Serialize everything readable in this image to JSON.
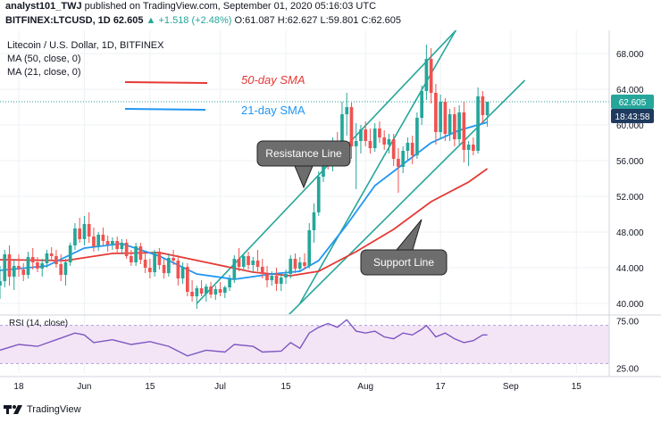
{
  "header": {
    "author": "analyst101_TWJ",
    "published": "published on TradingView.com, September 01, 2020 05:16:03 UTC",
    "symbol": "BITFINEX:LTCUSD, 1D",
    "last": "62.605",
    "change": "▲ +1.518 (+2.48%)",
    "ohlc": "O:61.087 H:62.627 L:59.801 C:62.605"
  },
  "legend": {
    "title": "Litecoin / U.S. Dollar, 1D, BITFINEX",
    "ma50": "MA (50, close, 0)",
    "ma21": "MA (21, close, 0)"
  },
  "annotations": {
    "sma50": "50-day SMA",
    "sma21": "21-day SMA",
    "resistance": "Resistance Line",
    "support": "Support Line"
  },
  "price_badges": {
    "price": "62.605",
    "countdown": "18:43:58"
  },
  "rsi": {
    "label": "RSI (14, close)",
    "ticks": [
      "75.00",
      "25.00"
    ]
  },
  "footer": {
    "brand": "TradingView"
  },
  "colors": {
    "up": "#26a69a",
    "down": "#ef5350",
    "ma50": "#e53935",
    "ma21": "#2196f3",
    "channel": "#26a69a",
    "rsi": "#7e57c2",
    "badge_price": "#26a69a",
    "badge_time": "#1e3a5f"
  },
  "chart_data": {
    "type": "candlestick",
    "title": "Litecoin / U.S. Dollar, 1D, BITFINEX",
    "y_ticks": [
      40,
      44,
      48,
      52,
      56,
      60,
      64,
      68
    ],
    "y_tick_labels": [
      "40.000",
      "44.000",
      "48.000",
      "52.000",
      "56.000",
      "60.000",
      "64.000",
      "68.000"
    ],
    "ylim": [
      38.8,
      70.6
    ],
    "x_tick_labels": [
      "18",
      "Jun",
      "15",
      "Jul",
      "15",
      "Aug",
      "17",
      "Sep",
      "15"
    ],
    "x_tick_days": [
      0,
      14,
      28,
      43,
      57,
      74,
      90,
      105,
      119
    ],
    "x_days_range": [
      -4,
      126
    ],
    "candles": [
      {
        "d": -4,
        "o": 42.0,
        "h": 44.2,
        "l": 40.5,
        "c": 42.5
      },
      {
        "d": -3,
        "o": 42.5,
        "h": 46.0,
        "l": 41.8,
        "c": 45.5
      },
      {
        "d": -2,
        "o": 45.5,
        "h": 46.5,
        "l": 42.0,
        "c": 43.0
      },
      {
        "d": -1,
        "o": 43.0,
        "h": 45.0,
        "l": 41.5,
        "c": 44.2
      },
      {
        "d": 0,
        "o": 44.2,
        "h": 45.5,
        "l": 43.0,
        "c": 43.8
      },
      {
        "d": 1,
        "o": 43.8,
        "h": 44.5,
        "l": 42.5,
        "c": 43.2
      },
      {
        "d": 2,
        "o": 43.2,
        "h": 45.8,
        "l": 42.8,
        "c": 45.2
      },
      {
        "d": 3,
        "o": 45.2,
        "h": 46.2,
        "l": 43.8,
        "c": 44.6
      },
      {
        "d": 4,
        "o": 44.6,
        "h": 45.2,
        "l": 43.5,
        "c": 43.9
      },
      {
        "d": 5,
        "o": 43.9,
        "h": 45.0,
        "l": 43.0,
        "c": 44.5
      },
      {
        "d": 6,
        "o": 44.5,
        "h": 46.0,
        "l": 44.0,
        "c": 45.6
      },
      {
        "d": 7,
        "o": 45.6,
        "h": 46.3,
        "l": 44.8,
        "c": 45.3
      },
      {
        "d": 8,
        "o": 45.3,
        "h": 46.0,
        "l": 44.0,
        "c": 44.4
      },
      {
        "d": 9,
        "o": 44.4,
        "h": 45.5,
        "l": 42.5,
        "c": 43.2
      },
      {
        "d": 10,
        "o": 43.2,
        "h": 45.0,
        "l": 42.0,
        "c": 44.6
      },
      {
        "d": 11,
        "o": 44.6,
        "h": 46.8,
        "l": 44.2,
        "c": 46.5
      },
      {
        "d": 12,
        "o": 46.5,
        "h": 49.0,
        "l": 46.0,
        "c": 48.4
      },
      {
        "d": 13,
        "o": 48.4,
        "h": 49.6,
        "l": 46.8,
        "c": 47.2
      },
      {
        "d": 14,
        "o": 47.2,
        "h": 49.8,
        "l": 46.5,
        "c": 48.9
      },
      {
        "d": 15,
        "o": 48.9,
        "h": 50.2,
        "l": 46.8,
        "c": 47.5
      },
      {
        "d": 16,
        "o": 47.5,
        "h": 48.5,
        "l": 45.8,
        "c": 46.4
      },
      {
        "d": 17,
        "o": 46.4,
        "h": 48.0,
        "l": 45.9,
        "c": 47.7
      },
      {
        "d": 18,
        "o": 47.7,
        "h": 48.5,
        "l": 46.5,
        "c": 47.0
      },
      {
        "d": 19,
        "o": 47.0,
        "h": 47.6,
        "l": 45.8,
        "c": 46.6
      },
      {
        "d": 20,
        "o": 46.6,
        "h": 47.4,
        "l": 46.0,
        "c": 47.0
      },
      {
        "d": 21,
        "o": 47.0,
        "h": 47.5,
        "l": 45.6,
        "c": 46.1
      },
      {
        "d": 22,
        "o": 46.1,
        "h": 47.2,
        "l": 45.5,
        "c": 46.8
      },
      {
        "d": 23,
        "o": 46.8,
        "h": 47.2,
        "l": 45.0,
        "c": 45.3
      },
      {
        "d": 24,
        "o": 45.3,
        "h": 46.0,
        "l": 44.2,
        "c": 44.6
      },
      {
        "d": 25,
        "o": 44.6,
        "h": 46.8,
        "l": 44.2,
        "c": 46.4
      },
      {
        "d": 26,
        "o": 46.4,
        "h": 46.8,
        "l": 44.4,
        "c": 44.9
      },
      {
        "d": 27,
        "o": 44.9,
        "h": 45.6,
        "l": 43.4,
        "c": 44.0
      },
      {
        "d": 28,
        "o": 44.0,
        "h": 45.0,
        "l": 42.8,
        "c": 43.5
      },
      {
        "d": 29,
        "o": 43.5,
        "h": 46.0,
        "l": 43.0,
        "c": 45.8
      },
      {
        "d": 30,
        "o": 45.8,
        "h": 46.2,
        "l": 43.8,
        "c": 44.3
      },
      {
        "d": 31,
        "o": 44.3,
        "h": 45.0,
        "l": 42.8,
        "c": 43.4
      },
      {
        "d": 32,
        "o": 43.4,
        "h": 45.6,
        "l": 43.0,
        "c": 45.1
      },
      {
        "d": 33,
        "o": 45.1,
        "h": 46.0,
        "l": 44.3,
        "c": 44.8
      },
      {
        "d": 34,
        "o": 44.8,
        "h": 45.4,
        "l": 42.0,
        "c": 42.8
      },
      {
        "d": 35,
        "o": 42.8,
        "h": 44.6,
        "l": 42.2,
        "c": 44.1
      },
      {
        "d": 36,
        "o": 44.1,
        "h": 44.5,
        "l": 40.8,
        "c": 41.3
      },
      {
        "d": 37,
        "o": 41.3,
        "h": 42.6,
        "l": 40.2,
        "c": 40.8
      },
      {
        "d": 38,
        "o": 40.8,
        "h": 42.0,
        "l": 39.4,
        "c": 41.7
      },
      {
        "d": 39,
        "o": 41.7,
        "h": 42.6,
        "l": 40.8,
        "c": 41.1
      },
      {
        "d": 40,
        "o": 41.1,
        "h": 42.2,
        "l": 40.2,
        "c": 41.9
      },
      {
        "d": 41,
        "o": 41.9,
        "h": 42.4,
        "l": 40.6,
        "c": 41.0
      },
      {
        "d": 42,
        "o": 41.0,
        "h": 42.0,
        "l": 40.4,
        "c": 41.6
      },
      {
        "d": 43,
        "o": 41.6,
        "h": 42.4,
        "l": 40.8,
        "c": 41.2
      },
      {
        "d": 44,
        "o": 41.2,
        "h": 42.0,
        "l": 40.6,
        "c": 41.8
      },
      {
        "d": 45,
        "o": 41.8,
        "h": 43.2,
        "l": 41.4,
        "c": 42.7
      },
      {
        "d": 46,
        "o": 42.7,
        "h": 45.4,
        "l": 42.3,
        "c": 45.0
      },
      {
        "d": 47,
        "o": 45.0,
        "h": 46.2,
        "l": 43.6,
        "c": 44.1
      },
      {
        "d": 48,
        "o": 44.1,
        "h": 45.6,
        "l": 43.7,
        "c": 45.3
      },
      {
        "d": 49,
        "o": 45.3,
        "h": 45.8,
        "l": 43.8,
        "c": 44.3
      },
      {
        "d": 50,
        "o": 44.3,
        "h": 45.2,
        "l": 43.4,
        "c": 44.8
      },
      {
        "d": 51,
        "o": 44.8,
        "h": 46.0,
        "l": 43.6,
        "c": 44.1
      },
      {
        "d": 52,
        "o": 44.1,
        "h": 45.0,
        "l": 42.8,
        "c": 43.3
      },
      {
        "d": 53,
        "o": 43.3,
        "h": 44.2,
        "l": 41.8,
        "c": 42.6
      },
      {
        "d": 54,
        "o": 42.6,
        "h": 43.6,
        "l": 42.0,
        "c": 43.1
      },
      {
        "d": 55,
        "o": 43.1,
        "h": 44.0,
        "l": 41.4,
        "c": 42.2
      },
      {
        "d": 56,
        "o": 42.2,
        "h": 43.3,
        "l": 41.4,
        "c": 42.9
      },
      {
        "d": 57,
        "o": 42.9,
        "h": 43.8,
        "l": 42.2,
        "c": 43.3
      },
      {
        "d": 58,
        "o": 43.3,
        "h": 45.4,
        "l": 42.8,
        "c": 45.0
      },
      {
        "d": 59,
        "o": 45.0,
        "h": 45.6,
        "l": 43.4,
        "c": 43.9
      },
      {
        "d": 60,
        "o": 43.9,
        "h": 45.2,
        "l": 43.5,
        "c": 44.6
      },
      {
        "d": 61,
        "o": 44.6,
        "h": 45.6,
        "l": 43.8,
        "c": 44.2
      },
      {
        "d": 62,
        "o": 44.2,
        "h": 49.0,
        "l": 43.9,
        "c": 48.2
      },
      {
        "d": 63,
        "o": 48.2,
        "h": 51.2,
        "l": 46.8,
        "c": 50.2
      },
      {
        "d": 64,
        "o": 50.2,
        "h": 54.8,
        "l": 49.8,
        "c": 54.2
      },
      {
        "d": 65,
        "o": 54.2,
        "h": 57.8,
        "l": 53.6,
        "c": 56.9
      },
      {
        "d": 66,
        "o": 56.9,
        "h": 57.9,
        "l": 55.0,
        "c": 55.6
      },
      {
        "d": 67,
        "o": 55.6,
        "h": 58.6,
        "l": 54.8,
        "c": 57.9
      },
      {
        "d": 68,
        "o": 57.9,
        "h": 59.2,
        "l": 56.0,
        "c": 56.5
      },
      {
        "d": 69,
        "o": 56.5,
        "h": 62.6,
        "l": 55.6,
        "c": 61.2
      },
      {
        "d": 70,
        "o": 61.2,
        "h": 63.6,
        "l": 58.8,
        "c": 62.0
      },
      {
        "d": 71,
        "o": 62.0,
        "h": 62.5,
        "l": 56.2,
        "c": 57.6
      },
      {
        "d": 72,
        "o": 57.6,
        "h": 60.2,
        "l": 52.8,
        "c": 58.2
      },
      {
        "d": 73,
        "o": 58.2,
        "h": 60.0,
        "l": 56.8,
        "c": 59.5
      },
      {
        "d": 74,
        "o": 59.5,
        "h": 60.4,
        "l": 57.6,
        "c": 58.2
      },
      {
        "d": 75,
        "o": 58.2,
        "h": 59.6,
        "l": 56.8,
        "c": 57.4
      },
      {
        "d": 76,
        "o": 57.4,
        "h": 60.2,
        "l": 57.0,
        "c": 59.6
      },
      {
        "d": 77,
        "o": 59.6,
        "h": 60.4,
        "l": 58.0,
        "c": 58.6
      },
      {
        "d": 78,
        "o": 58.6,
        "h": 59.4,
        "l": 57.2,
        "c": 57.8
      },
      {
        "d": 79,
        "o": 57.8,
        "h": 59.0,
        "l": 56.8,
        "c": 58.4
      },
      {
        "d": 80,
        "o": 58.4,
        "h": 59.0,
        "l": 55.4,
        "c": 56.2
      },
      {
        "d": 81,
        "o": 56.2,
        "h": 57.4,
        "l": 52.4,
        "c": 55.3
      },
      {
        "d": 82,
        "o": 55.3,
        "h": 57.6,
        "l": 54.6,
        "c": 57.1
      },
      {
        "d": 83,
        "o": 57.1,
        "h": 58.6,
        "l": 56.0,
        "c": 58.0
      },
      {
        "d": 84,
        "o": 58.0,
        "h": 58.8,
        "l": 55.6,
        "c": 56.6
      },
      {
        "d": 85,
        "o": 56.6,
        "h": 61.4,
        "l": 56.2,
        "c": 60.8
      },
      {
        "d": 86,
        "o": 60.8,
        "h": 64.4,
        "l": 60.0,
        "c": 63.8
      },
      {
        "d": 87,
        "o": 63.8,
        "h": 69.0,
        "l": 62.8,
        "c": 67.4
      },
      {
        "d": 88,
        "o": 67.4,
        "h": 68.6,
        "l": 62.4,
        "c": 63.6
      },
      {
        "d": 89,
        "o": 63.6,
        "h": 64.6,
        "l": 57.8,
        "c": 59.2
      },
      {
        "d": 90,
        "o": 59.2,
        "h": 63.4,
        "l": 58.4,
        "c": 62.6
      },
      {
        "d": 91,
        "o": 62.6,
        "h": 63.0,
        "l": 58.2,
        "c": 59.0
      },
      {
        "d": 92,
        "o": 59.0,
        "h": 61.8,
        "l": 58.2,
        "c": 61.2
      },
      {
        "d": 93,
        "o": 61.2,
        "h": 62.0,
        "l": 57.6,
        "c": 58.4
      },
      {
        "d": 94,
        "o": 58.4,
        "h": 62.2,
        "l": 57.8,
        "c": 61.4
      },
      {
        "d": 95,
        "o": 61.4,
        "h": 62.6,
        "l": 55.8,
        "c": 57.2
      },
      {
        "d": 96,
        "o": 57.2,
        "h": 58.2,
        "l": 55.4,
        "c": 57.8
      },
      {
        "d": 97,
        "o": 57.8,
        "h": 58.6,
        "l": 56.6,
        "c": 57.1
      },
      {
        "d": 98,
        "o": 57.1,
        "h": 64.2,
        "l": 56.8,
        "c": 63.2
      },
      {
        "d": 99,
        "o": 63.2,
        "h": 63.8,
        "l": 60.2,
        "c": 61.1
      },
      {
        "d": 100,
        "o": 61.1,
        "h": 62.6,
        "l": 59.8,
        "c": 62.6
      }
    ],
    "series": [
      {
        "name": "MA (50, close, 0)",
        "points": [
          [
            -4,
            44.9
          ],
          [
            10,
            44.8
          ],
          [
            20,
            45.6
          ],
          [
            30,
            45.7
          ],
          [
            40,
            44.6
          ],
          [
            50,
            43.5
          ],
          [
            58,
            43.1
          ],
          [
            64,
            43.6
          ],
          [
            72,
            45.8
          ],
          [
            80,
            48.3
          ],
          [
            88,
            51.4
          ],
          [
            96,
            53.6
          ],
          [
            100,
            55.1
          ]
        ]
      },
      {
        "name": "MA (21, close, 0)",
        "points": [
          [
            -4,
            43.7
          ],
          [
            6,
            44.2
          ],
          [
            14,
            46.2
          ],
          [
            22,
            46.7
          ],
          [
            30,
            45.3
          ],
          [
            38,
            43.3
          ],
          [
            46,
            42.7
          ],
          [
            54,
            43.3
          ],
          [
            60,
            43.6
          ],
          [
            64,
            44.8
          ],
          [
            70,
            48.8
          ],
          [
            76,
            53.2
          ],
          [
            82,
            55.6
          ],
          [
            88,
            58.0
          ],
          [
            94,
            59.4
          ],
          [
            100,
            60.3
          ]
        ]
      }
    ],
    "trendlines": [
      {
        "name": "Resistance Line",
        "points": [
          [
            38,
            40.0
          ],
          [
            98,
            73.2
          ]
        ]
      },
      {
        "name": "Support Line",
        "points": [
          [
            57,
            38.4
          ],
          [
            108,
            65.0
          ]
        ]
      },
      {
        "name": "channel-parallel",
        "points": [
          [
            60,
            40.0
          ],
          [
            95,
            72.2
          ]
        ]
      }
    ],
    "rsi": {
      "name": "RSI (14, close)",
      "band": [
        30,
        70
      ],
      "ylim": [
        20,
        80
      ],
      "ticks": [
        75,
        25
      ],
      "points": [
        [
          -4,
          44
        ],
        [
          0,
          50
        ],
        [
          4,
          48
        ],
        [
          8,
          55
        ],
        [
          12,
          62
        ],
        [
          14,
          60
        ],
        [
          16,
          52
        ],
        [
          20,
          55
        ],
        [
          24,
          50
        ],
        [
          28,
          53
        ],
        [
          32,
          48
        ],
        [
          36,
          38
        ],
        [
          40,
          44
        ],
        [
          44,
          42
        ],
        [
          46,
          50
        ],
        [
          50,
          48
        ],
        [
          52,
          42
        ],
        [
          56,
          43
        ],
        [
          58,
          52
        ],
        [
          60,
          46
        ],
        [
          62,
          62
        ],
        [
          64,
          68
        ],
        [
          66,
          72
        ],
        [
          68,
          68
        ],
        [
          70,
          76
        ],
        [
          72,
          64
        ],
        [
          74,
          62
        ],
        [
          76,
          64
        ],
        [
          78,
          58
        ],
        [
          80,
          56
        ],
        [
          82,
          62
        ],
        [
          84,
          60
        ],
        [
          86,
          66
        ],
        [
          87,
          70
        ],
        [
          89,
          58
        ],
        [
          91,
          62
        ],
        [
          93,
          56
        ],
        [
          95,
          52
        ],
        [
          97,
          54
        ],
        [
          99,
          60
        ],
        [
          100,
          60
        ]
      ]
    },
    "grid": true,
    "last_price": 62.605
  }
}
